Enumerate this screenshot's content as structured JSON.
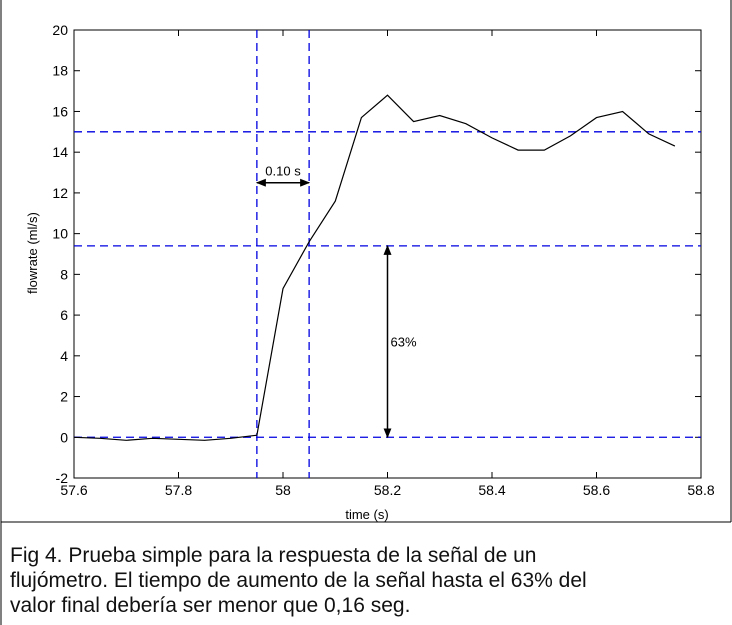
{
  "chart_data": {
    "type": "line",
    "xlabel": "time (s)",
    "ylabel": "flowrate (ml/s)",
    "xlim": [
      57.6,
      58.8
    ],
    "ylim": [
      -2,
      20
    ],
    "xticks": [
      57.6,
      57.8,
      58,
      58.2,
      58.4,
      58.6,
      58.8
    ],
    "xtick_labels": [
      "57.6",
      "57.8",
      "58",
      "58.2",
      "58.4",
      "58.6",
      "58.8"
    ],
    "yticks": [
      -2,
      0,
      2,
      4,
      6,
      8,
      10,
      12,
      14,
      16,
      18,
      20
    ],
    "ytick_labels": [
      "-2",
      "0",
      "2",
      "4",
      "6",
      "8",
      "10",
      "12",
      "14",
      "16",
      "18",
      "20"
    ],
    "grid": false,
    "series": [
      {
        "color": "#000000",
        "x": [
          57.6,
          57.65,
          57.7,
          57.75,
          57.8,
          57.85,
          57.9,
          57.95,
          58.0,
          58.05,
          58.1,
          58.15,
          58.2,
          58.25,
          58.3,
          58.35,
          58.4,
          58.45,
          58.5,
          58.55,
          58.6,
          58.65,
          58.7,
          58.75
        ],
        "y": [
          0.0,
          -0.05,
          -0.15,
          -0.05,
          -0.1,
          -0.15,
          -0.05,
          0.1,
          7.3,
          9.6,
          11.6,
          15.7,
          16.8,
          15.5,
          15.8,
          15.4,
          14.7,
          14.1,
          14.1,
          14.8,
          15.7,
          16.0,
          14.9,
          14.3
        ]
      }
    ],
    "reference_lines": {
      "color": "#0000e0",
      "horizontal": [
        15,
        9.4,
        0
      ],
      "vertical": [
        57.95,
        58.05
      ]
    },
    "annotations": [
      {
        "type": "double-arrow",
        "text": "0.10 s",
        "from": [
          57.95,
          12.5
        ],
        "to": [
          58.05,
          12.5
        ]
      },
      {
        "type": "double-arrow",
        "text": "63%",
        "from": [
          58.2,
          9.4
        ],
        "to": [
          58.2,
          0
        ]
      }
    ]
  },
  "caption": {
    "lines": [
      "Fig 4. Prueba simple para la respuesta de la señal de un",
      "flujómetro. El tiempo de aumento de la señal hasta el 63% del",
      "valor final debería ser menor que 0,16 seg."
    ]
  }
}
